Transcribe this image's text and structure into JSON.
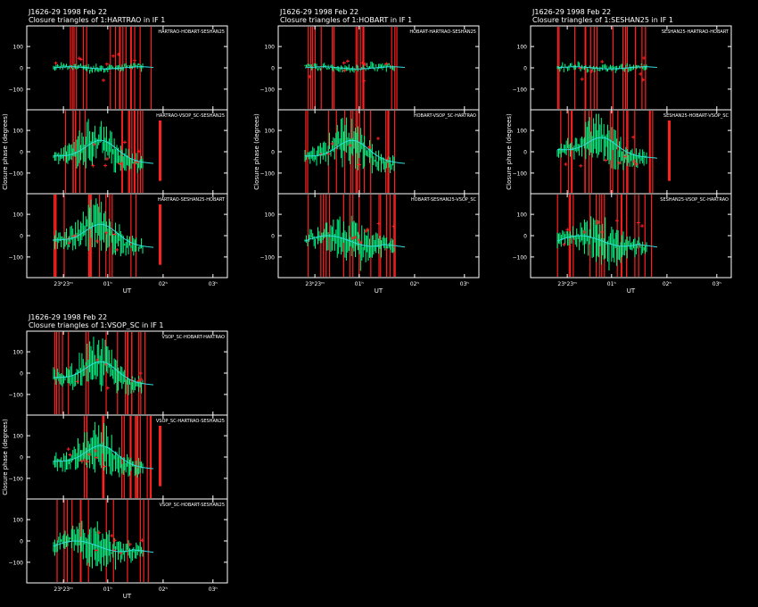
{
  "page": {
    "background": "#000000"
  },
  "colors": {
    "frame": "#ffffff",
    "measured": "#00ff88",
    "flagged": "#ff2020",
    "model": "#33dddd"
  },
  "chart_data": [
    {
      "type": "scatter",
      "source": "J1626-29",
      "date": "1998 Feb 22",
      "title": "Closure triangles of 1:HARTRAO in IF 1",
      "ylabel": "Closure phase  (degrees)",
      "xlabel": "UT",
      "x_ticks": [
        "23ʰ23ᵐ",
        "01ʰ",
        "02ʰ",
        "03ʰ"
      ],
      "panels": [
        {
          "triangle": "HARTRAO-HOBART-SESHAN25",
          "y_ticks": [
            "100",
            "0",
            "−100"
          ],
          "ylim": [
            -180,
            180
          ],
          "model_shape": "flat"
        },
        {
          "triangle": "HARTRAO-VSOP_SC-SESHAN25",
          "y_ticks": [
            "100",
            "0",
            "−100"
          ],
          "ylim": [
            -180,
            180
          ],
          "model_shape": "hump",
          "flag_tail": true
        },
        {
          "triangle": "HARTRAO-SESHAN25-HOBART",
          "y_ticks": [
            "100",
            "0",
            "−100"
          ],
          "ylim": [
            -180,
            180
          ],
          "model_shape": "hump",
          "flag_tail": true
        }
      ]
    },
    {
      "type": "scatter",
      "source": "J1626-29",
      "date": "1998 Feb 22",
      "title": "Closure triangles of 1:HOBART in IF 1",
      "ylabel": "Closure phase  (degrees)",
      "xlabel": "UT",
      "x_ticks": [
        "23ʰ23ᵐ",
        "01ʰ",
        "02ʰ",
        "03ʰ"
      ],
      "panels": [
        {
          "triangle": "HOBART-HARTRAO-SESHAN25",
          "y_ticks": [
            "100",
            "0",
            "−100"
          ],
          "ylim": [
            -180,
            180
          ],
          "model_shape": "flat"
        },
        {
          "triangle": "HOBART-VSOP_SC-HARTRAO",
          "y_ticks": [
            "100",
            "0",
            "−100"
          ],
          "ylim": [
            -180,
            180
          ],
          "model_shape": "hump"
        },
        {
          "triangle": "HOBART-SESHAN25-VSOP_SC",
          "y_ticks": [
            "100",
            "0",
            "−100"
          ],
          "ylim": [
            -180,
            180
          ],
          "model_shape": "wave"
        }
      ]
    },
    {
      "type": "scatter",
      "source": "J1626-29",
      "date": "1998 Feb 22",
      "title": "Closure triangles of 1:SESHAN25 in IF 1",
      "ylabel": "Closure phase  (degrees)",
      "xlabel": "UT",
      "x_ticks": [
        "23ʰ23ᵐ",
        "01ʰ",
        "02ʰ",
        "03ʰ"
      ],
      "panels": [
        {
          "triangle": "SESHAN25-HARTRAO-HOBART",
          "y_ticks": [
            "100",
            "0",
            "−100"
          ],
          "ylim": [
            -180,
            180
          ],
          "model_shape": "flat"
        },
        {
          "triangle": "SESHAN25-HOBART-VSOP_SC",
          "y_ticks": [
            "100",
            "0",
            "−100"
          ],
          "ylim": [
            -180,
            180
          ],
          "model_shape": "hump2",
          "flag_tail": true
        },
        {
          "triangle": "SESHAN25-VSOP_SC-HARTRAO",
          "y_ticks": [
            "100",
            "0",
            "−100"
          ],
          "ylim": [
            -180,
            180
          ],
          "model_shape": "wave"
        }
      ]
    },
    {
      "type": "scatter",
      "source": "J1626-29",
      "date": "1998 Feb 22",
      "title": "Closure triangles of 1:VSOP_SC in IF 1",
      "ylabel": "Closure phase  (degrees)",
      "xlabel": "UT",
      "x_ticks": [
        "23ʰ23ᵐ",
        "01ʰ",
        "02ʰ",
        "03ʰ"
      ],
      "panels": [
        {
          "triangle": "VSOP_SC-HOBART-HARTRAO",
          "y_ticks": [
            "100",
            "0",
            "−100"
          ],
          "ylim": [
            -180,
            180
          ],
          "model_shape": "hump"
        },
        {
          "triangle": "VSOP_SC-HARTRAO-SESHAN25",
          "y_ticks": [
            "100",
            "0",
            "−100"
          ],
          "ylim": [
            -180,
            180
          ],
          "model_shape": "hump",
          "flag_tail": true
        },
        {
          "triangle": "VSOP_SC-HOBART-SESHAN25",
          "y_ticks": [
            "100",
            "0",
            "−100"
          ],
          "ylim": [
            -180,
            180
          ],
          "model_shape": "wave"
        }
      ]
    }
  ]
}
